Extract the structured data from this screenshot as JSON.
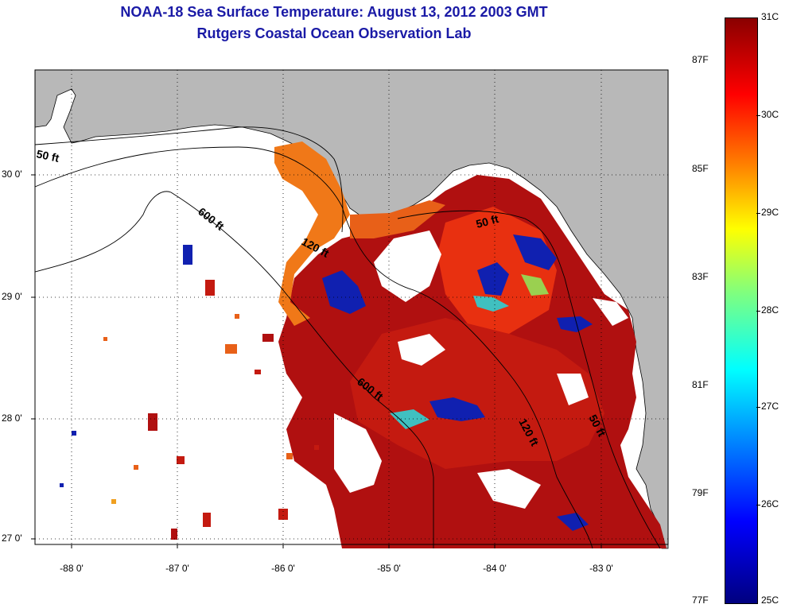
{
  "title": {
    "line1": "NOAA-18 Sea Surface Temperature:  August 13, 2012 2003 GMT",
    "line2": "Rutgers Coastal Ocean Observation Lab"
  },
  "axes": {
    "latitude_ticks": [
      "30 0'",
      "29 0'",
      "28 0'",
      "27 0'"
    ],
    "longitude_ticks": [
      "-88 0'",
      "-87 0'",
      "-86 0'",
      "-85 0'",
      "-84 0'",
      "-83 0'"
    ]
  },
  "isobaths": [
    {
      "label": "50 ft"
    },
    {
      "label": "600 ft"
    },
    {
      "label": "120 ft"
    },
    {
      "label": "50 ft"
    },
    {
      "label": "600 ft"
    },
    {
      "label": "120 ft"
    },
    {
      "label": "50 ft"
    }
  ],
  "colorbar": {
    "celsius_labels": [
      "31C",
      "30C",
      "29C",
      "28C",
      "27C",
      "26C",
      "25C"
    ],
    "fahrenheit_labels": [
      "87F",
      "85F",
      "83F",
      "81F",
      "79F",
      "77F"
    ]
  },
  "colors": {
    "title": "#1a1aa6",
    "land": "#b8b8b8",
    "no_data": "#ffffff",
    "warm": "#b01010",
    "hot": "#e83010",
    "cool": "#1020b0"
  }
}
